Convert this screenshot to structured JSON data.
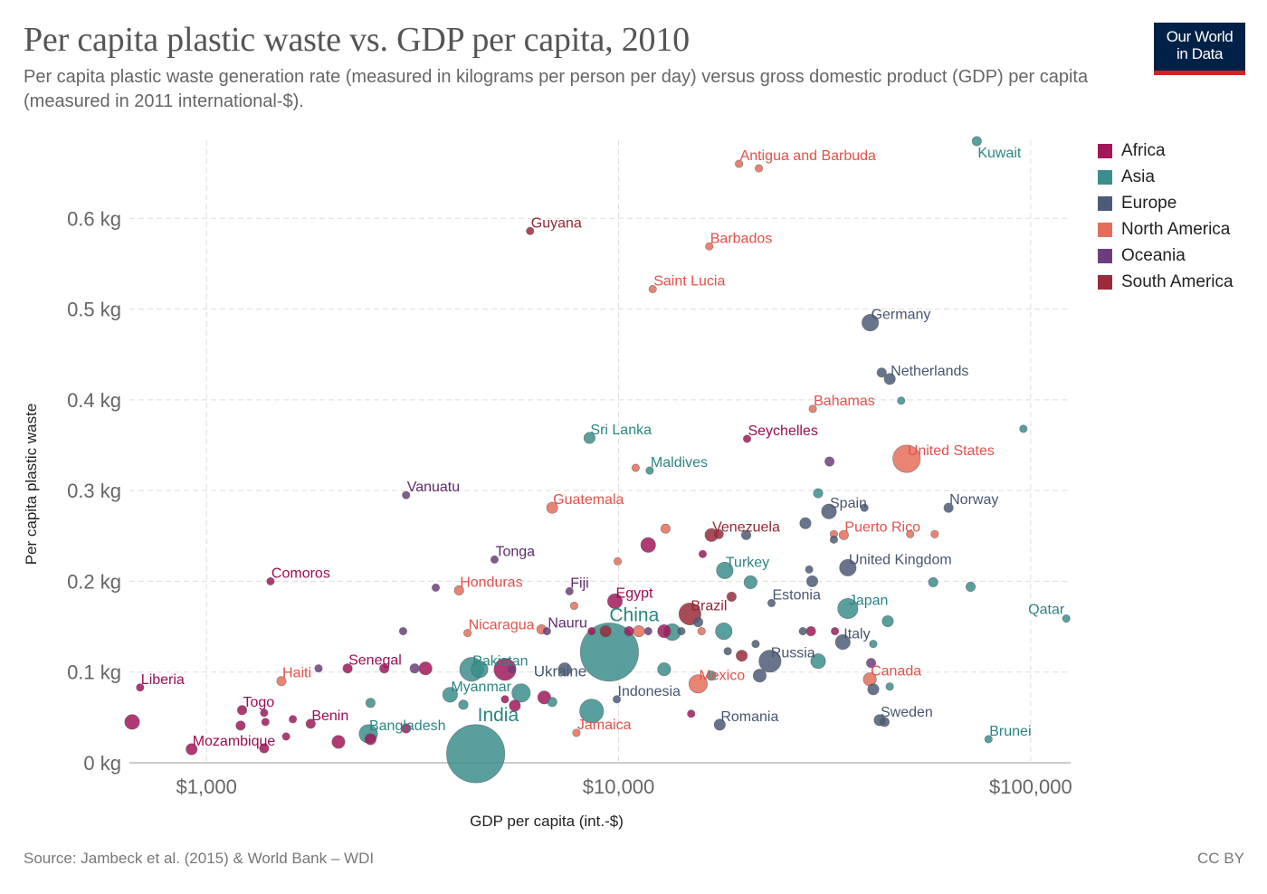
{
  "header": {
    "title": "Per capita plastic waste vs. GDP per capita, 2010",
    "subtitle": "Per capita plastic waste generation rate (measured in kilograms per person per day) versus gross domestic product (GDP) per capita (measured in 2011 international-$).",
    "logo_line1": "Our World",
    "logo_line2": "in Data"
  },
  "footer": {
    "source": "Source: Jambeck et al. (2015) & World Bank – WDI",
    "license": "CC BY"
  },
  "colors": {
    "Africa": "#a2185b",
    "Asia": "#3b8e8c",
    "Europe": "#4c5c78",
    "North America": "#e56e5a",
    "Oceania": "#6d3e7d",
    "South America": "#9a2c3a"
  },
  "label_colors": {
    "Africa": "#9d0b53",
    "Asia": "#2a8583",
    "Europe": "#46566f",
    "North America": "#e3504a",
    "Oceania": "#5f2a6e",
    "South America": "#932533"
  },
  "chart_data": {
    "type": "scatter",
    "title": "Per capita plastic waste vs. GDP per capita, 2010",
    "xlabel": "GDP per capita (int.-$)",
    "ylabel": "Per capita plastic waste",
    "x_scale": "log",
    "xlim": [
      650,
      125000
    ],
    "ylim": [
      0,
      0.686
    ],
    "x_ticks": [
      1000,
      10000,
      100000
    ],
    "x_tick_labels": [
      "$1,000",
      "$10,000",
      "$100,000"
    ],
    "y_ticks": [
      0,
      0.1,
      0.2,
      0.3,
      0.4,
      0.5,
      0.6
    ],
    "y_tick_labels": [
      "0 kg",
      "0.1 kg",
      "0.2 kg",
      "0.3 kg",
      "0.4 kg",
      "0.5 kg",
      "0.6 kg"
    ],
    "grid": true,
    "legend_position": "right",
    "legend": [
      "Africa",
      "Asia",
      "Europe",
      "North America",
      "Oceania",
      "South America"
    ],
    "size_encoding": "population",
    "points": [
      {
        "name": "Kuwait",
        "x": 74000,
        "y": 0.685,
        "region": "Asia",
        "size": 3,
        "label": true
      },
      {
        "name": "Antigua and Barbuda",
        "x": 19600,
        "y": 0.66,
        "region": "North America",
        "size": 2,
        "label": true
      },
      {
        "name": "",
        "x": 21900,
        "y": 0.655,
        "region": "North America",
        "size": 2
      },
      {
        "name": "Guyana",
        "x": 6100,
        "y": 0.586,
        "region": "South America",
        "size": 2,
        "label": true
      },
      {
        "name": "Barbados",
        "x": 16600,
        "y": 0.569,
        "region": "North America",
        "size": 2,
        "label": true
      },
      {
        "name": "Saint Lucia",
        "x": 12100,
        "y": 0.522,
        "region": "North America",
        "size": 2,
        "label": true
      },
      {
        "name": "Germany",
        "x": 40800,
        "y": 0.485,
        "region": "Europe",
        "size": 7,
        "label": true
      },
      {
        "name": "",
        "x": 43500,
        "y": 0.43,
        "region": "Europe",
        "size": 3
      },
      {
        "name": "Netherlands",
        "x": 45500,
        "y": 0.423,
        "region": "Europe",
        "size": 4,
        "label": true
      },
      {
        "name": "Bahamas",
        "x": 29600,
        "y": 0.39,
        "region": "North America",
        "size": 2,
        "label": true
      },
      {
        "name": "",
        "x": 48500,
        "y": 0.399,
        "region": "Asia",
        "size": 2
      },
      {
        "name": "",
        "x": 96000,
        "y": 0.368,
        "region": "Asia",
        "size": 2
      },
      {
        "name": "Sri Lanka",
        "x": 8500,
        "y": 0.358,
        "region": "Asia",
        "size": 4,
        "label": true
      },
      {
        "name": "Seychelles",
        "x": 20500,
        "y": 0.357,
        "region": "Africa",
        "size": 2,
        "label": true
      },
      {
        "name": "United States",
        "x": 50000,
        "y": 0.335,
        "region": "North America",
        "size": 13,
        "label": true
      },
      {
        "name": "",
        "x": 32500,
        "y": 0.332,
        "region": "Oceania",
        "size": 3
      },
      {
        "name": "",
        "x": 11000,
        "y": 0.325,
        "region": "North America",
        "size": 2
      },
      {
        "name": "Maldives",
        "x": 11900,
        "y": 0.322,
        "region": "Asia",
        "size": 2,
        "label": true
      },
      {
        "name": "Vanuatu",
        "x": 3050,
        "y": 0.295,
        "region": "Oceania",
        "size": 2,
        "label": true
      },
      {
        "name": "",
        "x": 30500,
        "y": 0.297,
        "region": "Asia",
        "size": 3
      },
      {
        "name": "Guatemala",
        "x": 6900,
        "y": 0.281,
        "region": "North America",
        "size": 4,
        "label": true
      },
      {
        "name": "Spain",
        "x": 32400,
        "y": 0.277,
        "region": "Europe",
        "size": 6,
        "label": true
      },
      {
        "name": "",
        "x": 39500,
        "y": 0.281,
        "region": "Europe",
        "size": 2
      },
      {
        "name": "Norway",
        "x": 63200,
        "y": 0.281,
        "region": "Europe",
        "size": 3,
        "label": true
      },
      {
        "name": "",
        "x": 28400,
        "y": 0.264,
        "region": "Europe",
        "size": 4
      },
      {
        "name": "",
        "x": 13000,
        "y": 0.258,
        "region": "North America",
        "size": 3
      },
      {
        "name": "Venezuela",
        "x": 16800,
        "y": 0.251,
        "region": "South America",
        "size": 5,
        "label": true
      },
      {
        "name": "",
        "x": 17500,
        "y": 0.252,
        "region": "South America",
        "size": 3
      },
      {
        "name": "",
        "x": 20400,
        "y": 0.251,
        "region": "Europe",
        "size": 3
      },
      {
        "name": "Puerto Rico",
        "x": 35200,
        "y": 0.251,
        "region": "North America",
        "size": 3,
        "label": true
      },
      {
        "name": "",
        "x": 33300,
        "y": 0.252,
        "region": "North America",
        "size": 2
      },
      {
        "name": "",
        "x": 33300,
        "y": 0.246,
        "region": "Europe",
        "size": 2
      },
      {
        "name": "",
        "x": 51000,
        "y": 0.252,
        "region": "North America",
        "size": 2
      },
      {
        "name": "",
        "x": 58500,
        "y": 0.252,
        "region": "North America",
        "size": 2
      },
      {
        "name": "",
        "x": 11800,
        "y": 0.24,
        "region": "Africa",
        "size": 6
      },
      {
        "name": "",
        "x": 16000,
        "y": 0.23,
        "region": "Africa",
        "size": 2
      },
      {
        "name": "Tonga",
        "x": 5000,
        "y": 0.224,
        "region": "Oceania",
        "size": 2,
        "label": true
      },
      {
        "name": "",
        "x": 9950,
        "y": 0.222,
        "region": "North America",
        "size": 2
      },
      {
        "name": "Turkey",
        "x": 18100,
        "y": 0.212,
        "region": "Asia",
        "size": 7,
        "label": true
      },
      {
        "name": "United Kingdom",
        "x": 36000,
        "y": 0.215,
        "region": "Europe",
        "size": 7,
        "label": true
      },
      {
        "name": "",
        "x": 29000,
        "y": 0.213,
        "region": "Europe",
        "size": 2
      },
      {
        "name": "",
        "x": 20900,
        "y": 0.199,
        "region": "Asia",
        "size": 5
      },
      {
        "name": "",
        "x": 29500,
        "y": 0.2,
        "region": "Europe",
        "size": 4
      },
      {
        "name": "",
        "x": 58000,
        "y": 0.199,
        "region": "Asia",
        "size": 3
      },
      {
        "name": "",
        "x": 71500,
        "y": 0.194,
        "region": "Asia",
        "size": 3
      },
      {
        "name": "Comoros",
        "x": 1430,
        "y": 0.2,
        "region": "Africa",
        "size": 2,
        "label": true
      },
      {
        "name": "",
        "x": 3600,
        "y": 0.193,
        "region": "Oceania",
        "size": 2
      },
      {
        "name": "Honduras",
        "x": 4100,
        "y": 0.19,
        "region": "North America",
        "size": 3,
        "label": true
      },
      {
        "name": "Fiji",
        "x": 7600,
        "y": 0.189,
        "region": "Oceania",
        "size": 2,
        "label": true
      },
      {
        "name": "Egypt",
        "x": 9800,
        "y": 0.178,
        "region": "Africa",
        "size": 6,
        "label": true
      },
      {
        "name": "",
        "x": 7800,
        "y": 0.173,
        "region": "North America",
        "size": 2
      },
      {
        "name": "Brazil",
        "x": 14900,
        "y": 0.164,
        "region": "South America",
        "size": 10,
        "label": true
      },
      {
        "name": "",
        "x": 18800,
        "y": 0.183,
        "region": "South America",
        "size": 3
      },
      {
        "name": "Estonia",
        "x": 23500,
        "y": 0.176,
        "region": "Europe",
        "size": 2,
        "label": true
      },
      {
        "name": "Japan",
        "x": 36000,
        "y": 0.17,
        "region": "Asia",
        "size": 9,
        "label": true
      },
      {
        "name": "Qatar",
        "x": 122000,
        "y": 0.159,
        "region": "Asia",
        "size": 2,
        "label": true
      },
      {
        "name": "China",
        "x": 9500,
        "y": 0.122,
        "region": "Asia",
        "size": 30,
        "label": true
      },
      {
        "name": "Ukraine",
        "x": 7400,
        "y": 0.103,
        "region": "Europe",
        "size": 5,
        "label": true
      },
      {
        "name": "Nicaragua",
        "x": 4300,
        "y": 0.143,
        "region": "North America",
        "size": 2,
        "label": true
      },
      {
        "name": "",
        "x": 6500,
        "y": 0.147,
        "region": "North America",
        "size": 3
      },
      {
        "name": "Nauru",
        "x": 6700,
        "y": 0.145,
        "region": "Oceania",
        "size": 2,
        "label": true
      },
      {
        "name": "",
        "x": 3000,
        "y": 0.145,
        "region": "Oceania",
        "size": 2
      },
      {
        "name": "",
        "x": 8600,
        "y": 0.145,
        "region": "Africa",
        "size": 2
      },
      {
        "name": "",
        "x": 9300,
        "y": 0.145,
        "region": "South America",
        "size": 4
      },
      {
        "name": "",
        "x": 10600,
        "y": 0.145,
        "region": "Africa",
        "size": 3
      },
      {
        "name": "",
        "x": 11200,
        "y": 0.145,
        "region": "North America",
        "size": 4
      },
      {
        "name": "",
        "x": 11800,
        "y": 0.145,
        "region": "Oceania",
        "size": 2
      },
      {
        "name": "",
        "x": 12900,
        "y": 0.145,
        "region": "Africa",
        "size": 5
      },
      {
        "name": "",
        "x": 13500,
        "y": 0.144,
        "region": "Asia",
        "size": 7
      },
      {
        "name": "",
        "x": 14200,
        "y": 0.145,
        "region": "Europe",
        "size": 2
      },
      {
        "name": "",
        "x": 15600,
        "y": 0.155,
        "region": "Europe",
        "size": 3
      },
      {
        "name": "",
        "x": 15900,
        "y": 0.145,
        "region": "North America",
        "size": 2
      },
      {
        "name": "",
        "x": 18000,
        "y": 0.145,
        "region": "Asia",
        "size": 7
      },
      {
        "name": "",
        "x": 28000,
        "y": 0.145,
        "region": "Europe",
        "size": 2
      },
      {
        "name": "",
        "x": 29300,
        "y": 0.145,
        "region": "Africa",
        "size": 3
      },
      {
        "name": "",
        "x": 33500,
        "y": 0.145,
        "region": "Africa",
        "size": 2
      },
      {
        "name": "",
        "x": 45000,
        "y": 0.156,
        "region": "Asia",
        "size": 4
      },
      {
        "name": "Italy",
        "x": 35000,
        "y": 0.133,
        "region": "Europe",
        "size": 6,
        "label": true
      },
      {
        "name": "",
        "x": 41500,
        "y": 0.131,
        "region": "Asia",
        "size": 2
      },
      {
        "name": "",
        "x": 21500,
        "y": 0.131,
        "region": "Europe",
        "size": 2
      },
      {
        "name": "",
        "x": 18400,
        "y": 0.123,
        "region": "Europe",
        "size": 2
      },
      {
        "name": "",
        "x": 19900,
        "y": 0.118,
        "region": "South America",
        "size": 4
      },
      {
        "name": "Russia",
        "x": 23300,
        "y": 0.112,
        "region": "Europe",
        "size": 10,
        "label": true
      },
      {
        "name": "",
        "x": 30500,
        "y": 0.112,
        "region": "Asia",
        "size": 6
      },
      {
        "name": "",
        "x": 41000,
        "y": 0.11,
        "region": "Oceania",
        "size": 3
      },
      {
        "name": "",
        "x": 22000,
        "y": 0.096,
        "region": "Europe",
        "size": 5
      },
      {
        "name": "Mexico",
        "x": 15600,
        "y": 0.087,
        "region": "North America",
        "size": 8,
        "label": true
      },
      {
        "name": "",
        "x": 16800,
        "y": 0.096,
        "region": "Asia",
        "size": 3
      },
      {
        "name": "Canada",
        "x": 40700,
        "y": 0.092,
        "region": "North America",
        "size": 5,
        "label": true
      },
      {
        "name": "",
        "x": 41500,
        "y": 0.081,
        "region": "Europe",
        "size": 4
      },
      {
        "name": "",
        "x": 45500,
        "y": 0.084,
        "region": "Asia",
        "size": 2
      },
      {
        "name": "Sweden",
        "x": 43000,
        "y": 0.047,
        "region": "Europe",
        "size": 4,
        "label": true
      },
      {
        "name": "",
        "x": 44200,
        "y": 0.045,
        "region": "Europe",
        "size": 3
      },
      {
        "name": "Brunei",
        "x": 79000,
        "y": 0.026,
        "region": "Asia",
        "size": 2,
        "label": true
      },
      {
        "name": "Romania",
        "x": 17600,
        "y": 0.042,
        "region": "Europe",
        "size": 4,
        "label": true
      },
      {
        "name": "",
        "x": 15000,
        "y": 0.054,
        "region": "Africa",
        "size": 2
      },
      {
        "name": "",
        "x": 12900,
        "y": 0.103,
        "region": "Asia",
        "size": 5
      },
      {
        "name": "Indonesia",
        "x": 9900,
        "y": 0.07,
        "region": "Europe",
        "size": 2,
        "label": true
      },
      {
        "name": "",
        "x": 8600,
        "y": 0.057,
        "region": "Asia",
        "size": 11
      },
      {
        "name": "Jamaica",
        "x": 7900,
        "y": 0.033,
        "region": "North America",
        "size": 2,
        "label": true
      },
      {
        "name": "",
        "x": 6600,
        "y": 0.072,
        "region": "Africa",
        "size": 5
      },
      {
        "name": "",
        "x": 6900,
        "y": 0.067,
        "region": "Asia",
        "size": 3
      },
      {
        "name": "India",
        "x": 4500,
        "y": 0.01,
        "region": "Asia",
        "size": 30,
        "label": true
      },
      {
        "name": "Pakistan",
        "x": 4400,
        "y": 0.103,
        "region": "Asia",
        "size": 11,
        "label": true
      },
      {
        "name": "",
        "x": 4600,
        "y": 0.103,
        "region": "Asia",
        "size": 7
      },
      {
        "name": "",
        "x": 5300,
        "y": 0.103,
        "region": "Africa",
        "size": 10
      },
      {
        "name": "",
        "x": 5500,
        "y": 0.103,
        "region": "Oceania",
        "size": 2
      },
      {
        "name": "Myanmar",
        "x": 3900,
        "y": 0.075,
        "region": "Asia",
        "size": 6,
        "label": true
      },
      {
        "name": "",
        "x": 5800,
        "y": 0.077,
        "region": "Asia",
        "size": 8
      },
      {
        "name": "",
        "x": 5300,
        "y": 0.07,
        "region": "Africa",
        "size": 2
      },
      {
        "name": "",
        "x": 5600,
        "y": 0.063,
        "region": "Africa",
        "size": 4
      },
      {
        "name": "",
        "x": 4200,
        "y": 0.064,
        "region": "Asia",
        "size": 3
      },
      {
        "name": "Senegal",
        "x": 2200,
        "y": 0.104,
        "region": "Africa",
        "size": 3,
        "label": true
      },
      {
        "name": "",
        "x": 2700,
        "y": 0.104,
        "region": "Africa",
        "size": 3
      },
      {
        "name": "",
        "x": 3200,
        "y": 0.104,
        "region": "Oceania",
        "size": 3
      },
      {
        "name": "",
        "x": 3400,
        "y": 0.104,
        "region": "Africa",
        "size": 5
      },
      {
        "name": "",
        "x": 1870,
        "y": 0.104,
        "region": "Oceania",
        "size": 2
      },
      {
        "name": "Haiti",
        "x": 1520,
        "y": 0.09,
        "region": "North America",
        "size": 3,
        "label": true
      },
      {
        "name": "Liberia",
        "x": 690,
        "y": 0.083,
        "region": "Africa",
        "size": 2,
        "label": true
      },
      {
        "name": "",
        "x": 660,
        "y": 0.045,
        "region": "Africa",
        "size": 6
      },
      {
        "name": "Togo",
        "x": 1220,
        "y": 0.058,
        "region": "Africa",
        "size": 3,
        "label": true
      },
      {
        "name": "",
        "x": 1380,
        "y": 0.055,
        "region": "Africa",
        "size": 2
      },
      {
        "name": "",
        "x": 1390,
        "y": 0.045,
        "region": "Africa",
        "size": 2
      },
      {
        "name": "",
        "x": 1210,
        "y": 0.041,
        "region": "Africa",
        "size": 3
      },
      {
        "name": "",
        "x": 1620,
        "y": 0.048,
        "region": "Africa",
        "size": 2
      },
      {
        "name": "Benin",
        "x": 1790,
        "y": 0.043,
        "region": "Africa",
        "size": 3,
        "label": true
      },
      {
        "name": "",
        "x": 2500,
        "y": 0.066,
        "region": "Asia",
        "size": 3
      },
      {
        "name": "Bangladesh",
        "x": 2470,
        "y": 0.032,
        "region": "Asia",
        "size": 8,
        "label": true
      },
      {
        "name": "",
        "x": 2500,
        "y": 0.026,
        "region": "Africa",
        "size": 4
      },
      {
        "name": "",
        "x": 2090,
        "y": 0.023,
        "region": "Africa",
        "size": 5
      },
      {
        "name": "",
        "x": 3050,
        "y": 0.038,
        "region": "Africa",
        "size": 3
      },
      {
        "name": "",
        "x": 1560,
        "y": 0.029,
        "region": "Africa",
        "size": 2
      },
      {
        "name": "Mozambique",
        "x": 920,
        "y": 0.015,
        "region": "Africa",
        "size": 4,
        "label": true
      },
      {
        "name": "",
        "x": 1380,
        "y": 0.016,
        "region": "Africa",
        "size": 3
      }
    ]
  }
}
